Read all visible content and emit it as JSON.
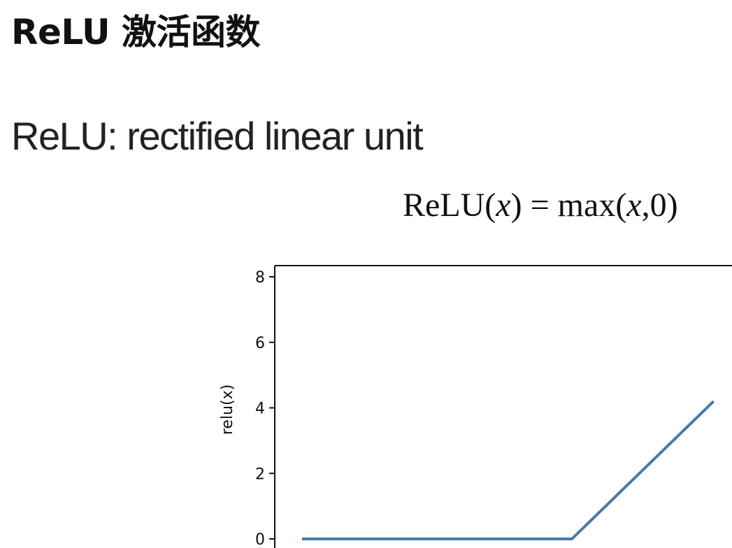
{
  "slide": {
    "title": "ReLU 激活函数",
    "subtitle": "ReLU: rectified linear unit"
  },
  "formula": {
    "lhs_fn": "ReLU(",
    "lhs_var": "x",
    "lhs_close": ")",
    "equals": " = ",
    "rhs_fn": "max(",
    "rhs_var": "x",
    "rhs_rest": ",0)"
  },
  "chart_data": {
    "type": "line",
    "xlabel": "",
    "ylabel": "relu(x)",
    "ylim": [
      0,
      8
    ],
    "yticks": [
      "0",
      "2",
      "4",
      "6",
      "8"
    ],
    "grid": false,
    "series": [
      {
        "color": "#4878b0",
        "x": [
          -8.0,
          0.0,
          4.2
        ],
        "y": [
          0.0,
          0.0,
          4.2
        ]
      }
    ]
  }
}
